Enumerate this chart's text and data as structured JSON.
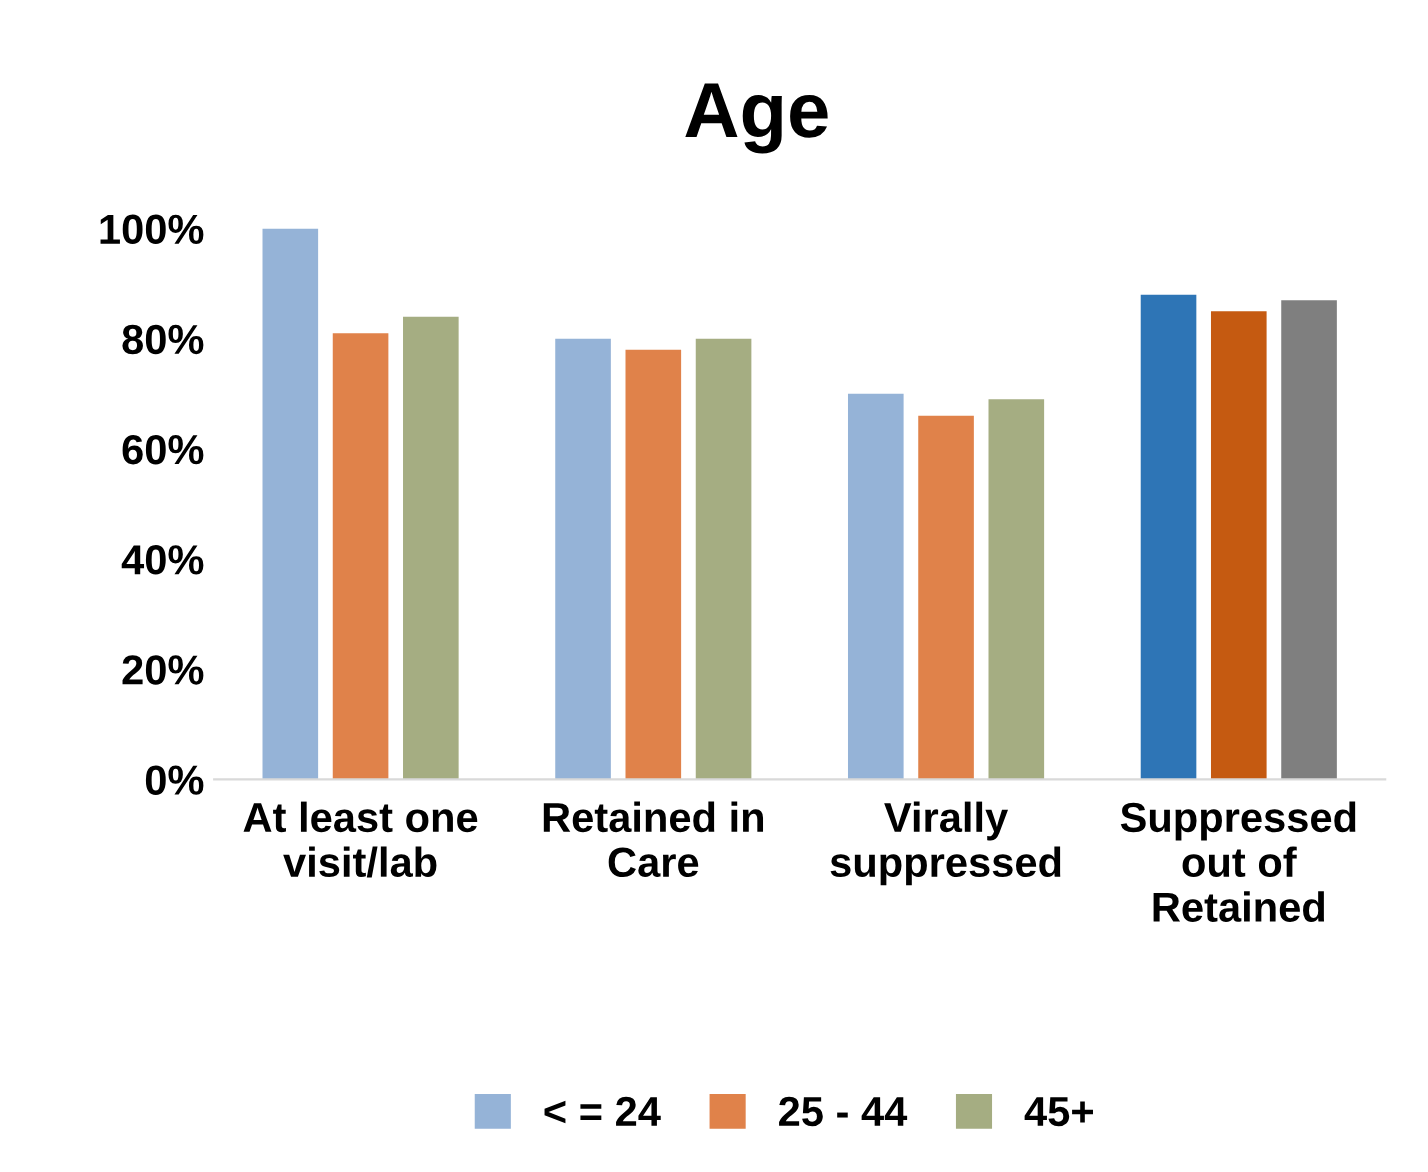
{
  "chart_data": {
    "type": "bar",
    "title": "Age",
    "categories": [
      "At least one\nvisit/lab",
      "Retained in\nCare",
      "Virally\nsuppressed",
      "Suppressed\nout of\nRetained"
    ],
    "series": [
      {
        "name": "< = 24",
        "color": "#95b3d7",
        "colors": [
          "#95b3d7",
          "#95b3d7",
          "#95b3d7",
          "#2e75b6"
        ],
        "values": [
          100,
          80,
          70,
          88
        ]
      },
      {
        "name": "25 - 44",
        "color": "#e0824a",
        "colors": [
          "#e0824a",
          "#e0824a",
          "#e0824a",
          "#c55a11"
        ],
        "values": [
          81,
          78,
          66,
          85
        ]
      },
      {
        "name": "45+",
        "color": "#a5ad82",
        "colors": [
          "#a5ad82",
          "#a5ad82",
          "#a5ad82",
          "#7f7f7f"
        ],
        "values": [
          84,
          80,
          69,
          87
        ]
      }
    ],
    "ylim": [
      0,
      100
    ],
    "yticks": [
      {
        "value": 0,
        "label": "0%"
      },
      {
        "value": 20,
        "label": "20%"
      },
      {
        "value": 40,
        "label": "40%"
      },
      {
        "value": 60,
        "label": "60%"
      },
      {
        "value": 80,
        "label": "80%"
      },
      {
        "value": 100,
        "label": "100%"
      }
    ],
    "legend": "bottom",
    "grid": false
  }
}
